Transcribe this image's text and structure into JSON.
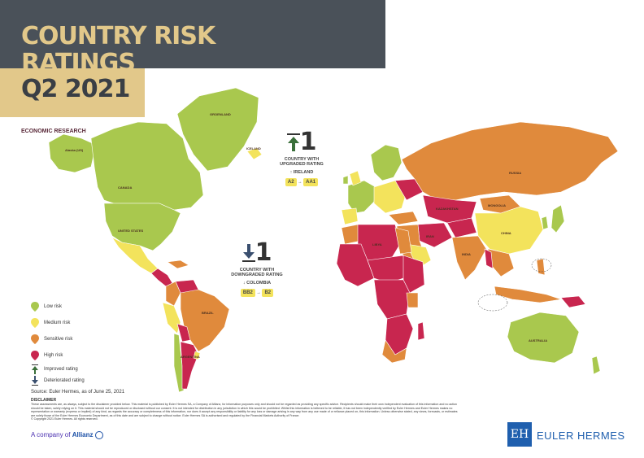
{
  "header": {
    "title_line1": "COUNTRY RISK",
    "title_line2": "RATINGS",
    "title_line3": "Q2 2021",
    "subtitle": "ECONOMIC RESEARCH"
  },
  "colors": {
    "low": "#a9c84e",
    "medium": "#f3e35c",
    "sensitive": "#e08a3c",
    "high": "#c8264f"
  },
  "legend": {
    "low": "Low risk",
    "medium": "Medium risk",
    "sensitive": "Sensitive risk",
    "high": "High risk",
    "improved": "Improved rating",
    "deteriorated": "Deteriorated rating"
  },
  "upgrade": {
    "count": "1",
    "label": "COUNTRY WITH UPGRADED RATING",
    "country": "IRELAND",
    "from": "A2",
    "to": "AA1"
  },
  "downgrade": {
    "count": "1",
    "label": "COUNTRY WITH DOWNGRADED RATING",
    "country": "COLOMBIA",
    "from": "BB2",
    "to": "B2"
  },
  "country_labels": {
    "greenland": "GROENLAND",
    "alaska": "Alaska (US)",
    "canada": "CANADA",
    "usa": "UNITED STATES",
    "brazil": "BRAZIL",
    "argentina": "ARGENTINA",
    "russia": "RUSSIA",
    "kazakhstan": "KAZAKHSTAN",
    "mongolia": "MONGOLIA",
    "china": "CHINA",
    "australia": "AUSTRALIA",
    "india": "INDIA",
    "iran": "IRAN",
    "libya": "LIBYA",
    "iceland": "ICELAND"
  },
  "footer": {
    "source": "Source: Euler Hermes, as of June 25, 2021",
    "disclaimer_title": "DISCLAIMER",
    "disclaimer_text": "These assessments are, as always, subject to the disclaimer provided below. This material is published by Euler Hermes SA, a Company of Allianz, for information purposes only and should not be regarded as providing any specific advice. Recipients should make their own independent evaluation of this information and no action should be taken, solely relying on it. This material should not be reproduced or disclosed without our consent. It is not intended for distribution in any jurisdiction in which this would be prohibited. Whilst this information is believed to be reliable, it has not been independently verified by Euler Hermes and Euler Hermes makes no representation or warranty (express or implied) of any kind, as regards the accuracy or completeness of this information, nor does it accept any responsibility or liability for any loss or damage arising in any way from any use made of or reliance placed on, this information. Unless otherwise stated, any views, forecasts, or estimates are solely those of the Euler Hermes Economic Department, as of this date and are subject to change without notice. Euler Hermes SA is authorised and regulated by the Financial Markets Authority of France.",
    "copyright": "© Copyright 2021 Euler Hermes. All rights reserved.",
    "company_prefix": "A company of",
    "company_name": "Allianz",
    "brand_mark": "EH",
    "brand_name": "EULER HERMES"
  }
}
